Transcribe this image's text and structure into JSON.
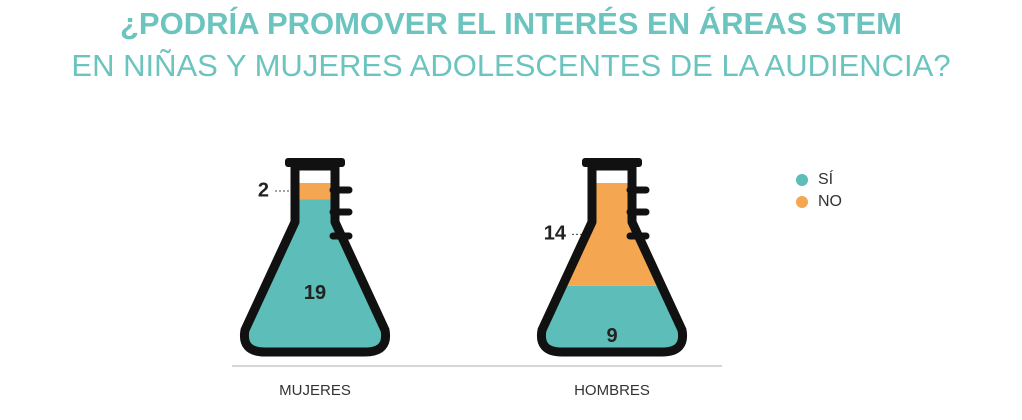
{
  "chart_data": {
    "type": "flask",
    "title": "¿PODRÍA PROMOVER EL INTERÉS EN ÁREAS STEM",
    "subtitle": "EN NIÑAS Y MUJERES ADOLESCENTES DE LA AUDIENCIA?",
    "categories": [
      "MUJERES",
      "HOMBRES"
    ],
    "series": [
      {
        "name": "SÍ",
        "color": "#5dbdb8",
        "values": [
          19,
          9
        ]
      },
      {
        "name": "NO",
        "color": "#f5a650",
        "values": [
          2,
          14
        ]
      }
    ]
  }
}
